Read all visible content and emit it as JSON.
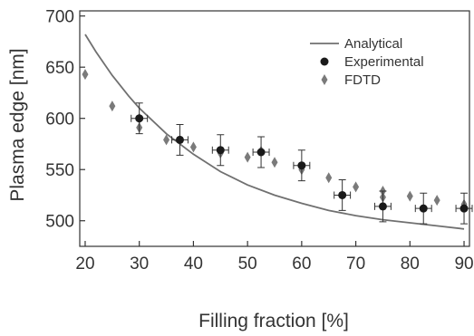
{
  "chart_data": {
    "type": "scatter",
    "xlabel": "Filling fraction [%]",
    "ylabel": "Plasma edge [nm]",
    "xlim": [
      19,
      91
    ],
    "ylim": [
      475,
      705
    ],
    "xticks": [
      20,
      30,
      40,
      50,
      60,
      70,
      80,
      90
    ],
    "yticks": [
      500,
      550,
      600,
      650,
      700
    ],
    "grid": false,
    "legend_position": "top-right",
    "series": [
      {
        "name": "Analytical",
        "kind": "line",
        "color": "#707070",
        "x": [
          20,
          22,
          25,
          28,
          30,
          35,
          40,
          45,
          50,
          55,
          60,
          65,
          70,
          75,
          80,
          85,
          90
        ],
        "y": [
          682,
          665,
          642,
          622,
          610,
          585,
          565,
          548,
          535,
          525,
          517,
          510,
          505,
          501,
          498,
          495,
          492
        ]
      },
      {
        "name": "Experimental",
        "kind": "scatter",
        "marker": "circle",
        "color": "#1a1a1a",
        "x": [
          30,
          37.5,
          45,
          52.5,
          60,
          67.5,
          75,
          82.5,
          90
        ],
        "y": [
          600,
          579,
          569,
          567,
          554,
          525,
          514,
          512,
          512
        ],
        "y_err": [
          15,
          15,
          15,
          15,
          15,
          15,
          15,
          15,
          15
        ],
        "x_err": [
          1.5,
          1.5,
          1.5,
          1.5,
          1.5,
          1.5,
          1.5,
          1.5,
          1.5
        ]
      },
      {
        "name": "FDTD",
        "kind": "scatter",
        "marker": "diamond",
        "color": "#7a7a7a",
        "x": [
          20,
          25,
          30,
          30,
          35,
          40,
          45,
          50,
          52.5,
          55,
          60,
          65,
          70,
          75,
          75,
          80,
          85,
          90
        ],
        "y": [
          643,
          612,
          600,
          591,
          579,
          572,
          566,
          562,
          568,
          557,
          550,
          542,
          533,
          529,
          523,
          524,
          520,
          516
        ]
      }
    ]
  }
}
